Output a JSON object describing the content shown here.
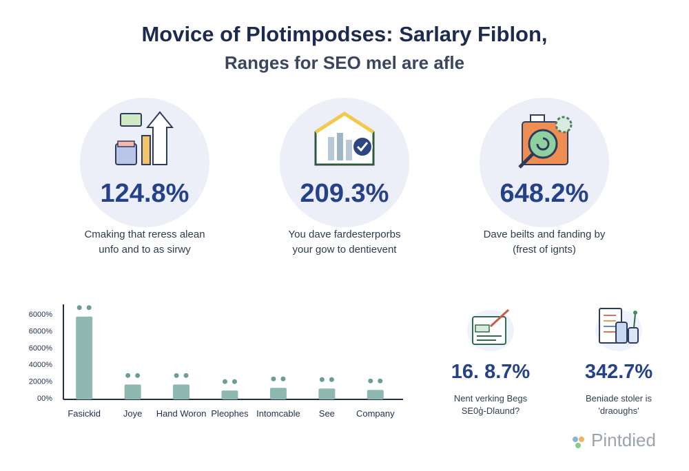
{
  "header": {
    "title": "Movice of Plotimpodses: Sarlary Fiblon,",
    "subtitle": "Ranges for SEO mel are afle"
  },
  "stats": [
    {
      "value": "124.8%",
      "caption_line1": "Cmaking that reress alean",
      "caption_line2": "unfo and to as sirwy",
      "icon": "growth-chart-icon"
    },
    {
      "value": "209.3%",
      "caption_line1": "You dave fardesterporbs",
      "caption_line2": "your gow to dentievent",
      "icon": "house-chart-check-icon"
    },
    {
      "value": "648.2%",
      "caption_line1": "Dave beilts and fanding by",
      "caption_line2": "(frest of ignts)",
      "icon": "magnifier-gear-icon"
    }
  ],
  "mini_stats": [
    {
      "value": "16. 8.7%",
      "caption_line1": "Nent verking Begs",
      "caption_line2": "SE0ģ-Dlaund?",
      "icon": "document-edit-icon"
    },
    {
      "value": "342.7%",
      "caption_line1": "Beniade stoler is",
      "caption_line2": "'draoughs'",
      "icon": "checklist-cups-icon"
    }
  ],
  "chart_data": {
    "type": "bar",
    "categories": [
      "Fasickid",
      "Joye",
      "Hand Woron",
      "Pleophes",
      "Intomcable",
      "See",
      "Company"
    ],
    "values": [
      6100,
      1100,
      1100,
      650,
      850,
      800,
      700
    ],
    "y_ticks": [
      "6000%",
      "6000%",
      "6000%",
      "4000%",
      "2000%",
      "00%"
    ],
    "ylim": [
      0,
      7000
    ],
    "grid": false,
    "bar_color": "#8fb8b0",
    "marker_color": "#6a9d95"
  },
  "brand": {
    "name": "Pintdied"
  },
  "colors": {
    "accent": "#24418a",
    "circle": "#eceef8"
  }
}
